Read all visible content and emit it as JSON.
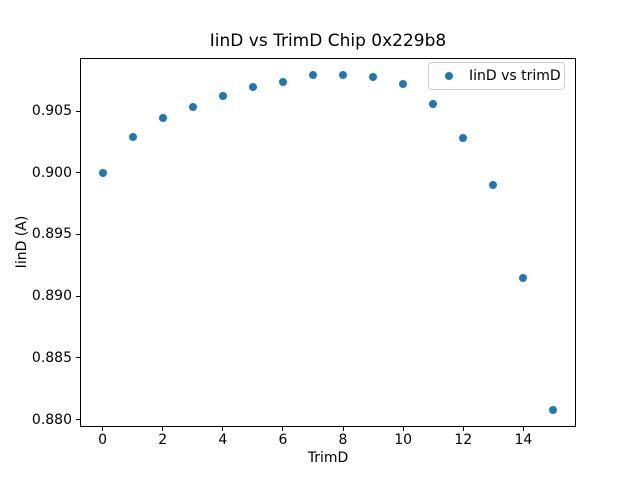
{
  "figure": {
    "title": "IinD vs TrimD Chip 0x229b8",
    "background_color": "#ffffff",
    "text_color": "#000000",
    "spine_color": "#000000"
  },
  "chart_data": {
    "type": "scatter",
    "title": "IinD vs TrimD Chip 0x229b8",
    "xlabel": "TrimD",
    "ylabel": "IinD (A)",
    "series": [
      {
        "name": "IinD vs trimD",
        "marker": "circle",
        "color": "#1f77b4",
        "x": [
          0,
          1,
          2,
          3,
          4,
          5,
          6,
          7,
          8,
          9,
          10,
          11,
          12,
          13,
          14,
          15
        ],
        "y": [
          0.9,
          0.9029,
          0.90445,
          0.9053,
          0.9062,
          0.90695,
          0.90735,
          0.90795,
          0.9079,
          0.9078,
          0.9072,
          0.9056,
          0.90285,
          0.899,
          0.8915,
          0.8808
        ]
      }
    ],
    "xlim": [
      -0.75,
      15.75
    ],
    "ylim": [
      0.8794,
      0.9093
    ],
    "x_ticks": [
      0,
      2,
      4,
      6,
      8,
      10,
      12,
      14
    ],
    "x_tick_labels": [
      "0",
      "2",
      "4",
      "6",
      "8",
      "10",
      "12",
      "14"
    ],
    "y_ticks": [
      0.88,
      0.885,
      0.89,
      0.895,
      0.9,
      0.905
    ],
    "y_tick_labels": [
      "0.880",
      "0.885",
      "0.890",
      "0.895",
      "0.900",
      "0.905"
    ],
    "grid": false,
    "legend": {
      "position": "upper right",
      "entries": [
        {
          "label": "IinD vs trimD",
          "marker_color": "#1f77b4"
        }
      ]
    }
  }
}
